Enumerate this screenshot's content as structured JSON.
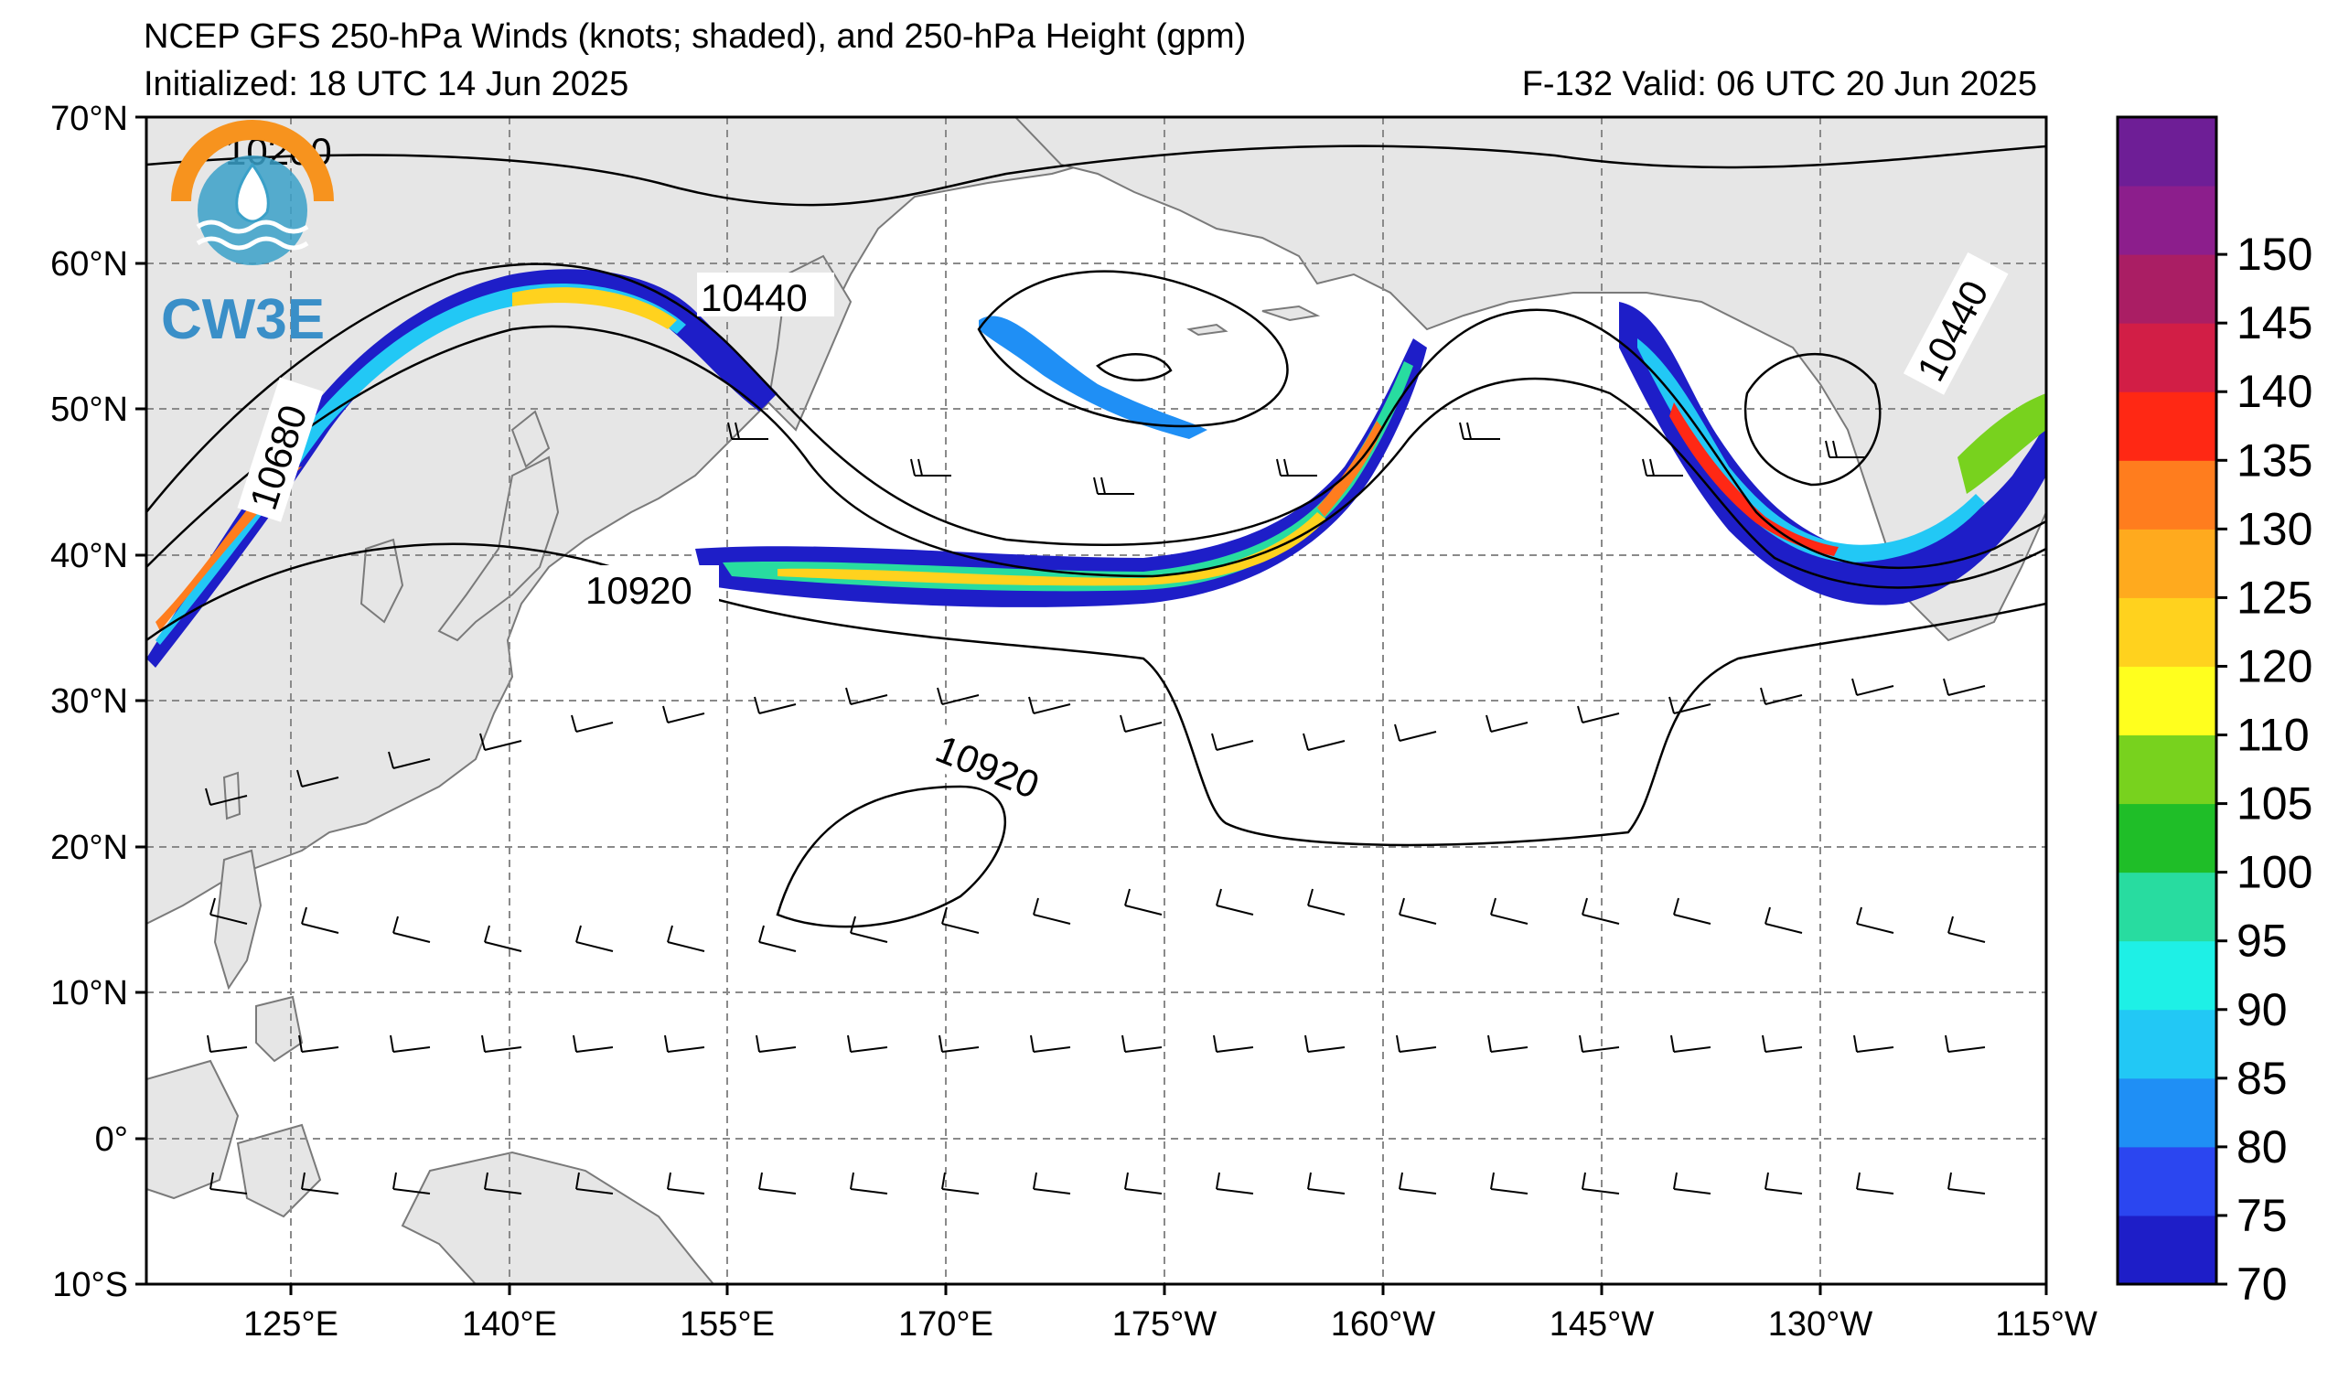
{
  "header": {
    "title": "NCEP GFS 250-hPa Winds (knots; shaded), and 250-hPa Height (gpm)",
    "initialized": "Initialized: 18 UTC 14 Jun 2025",
    "valid": "F-132  Valid: 06 UTC 20 Jun 2025"
  },
  "logo": {
    "text": "CW3E"
  },
  "map": {
    "lat_labels": [
      "70°N",
      "60°N",
      "50°N",
      "40°N",
      "30°N",
      "20°N",
      "10°N",
      "0°",
      "10°S"
    ],
    "lon_labels": [
      "125°E",
      "140°E",
      "155°E",
      "170°E",
      "175°W",
      "160°W",
      "145°W",
      "130°W",
      "115°W"
    ],
    "contour_labels": [
      "10440",
      "10680",
      "10920",
      "10920",
      "10440",
      "10200"
    ]
  },
  "colorbar": {
    "ticks": [
      "70",
      "75",
      "80",
      "85",
      "90",
      "95",
      "100",
      "105",
      "110",
      "120",
      "125",
      "130",
      "135",
      "140",
      "145",
      "150"
    ],
    "colors": [
      "#1e1ec8",
      "#2b46f0",
      "#1f8ff5",
      "#22c8f5",
      "#1ef0e6",
      "#28dca0",
      "#1fbe28",
      "#78d21e",
      "#ffff1e",
      "#ffd21e",
      "#ffaa1e",
      "#ff7d1e",
      "#ff2814",
      "#d21e46",
      "#aa1e64",
      "#8c1e8c",
      "#6e1e96"
    ]
  }
}
